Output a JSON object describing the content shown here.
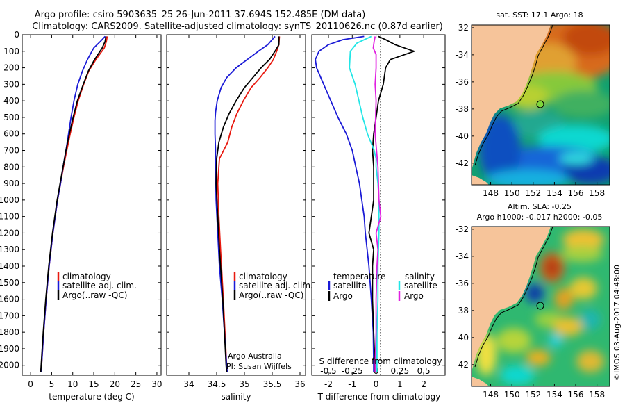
{
  "header": {
    "line1": "Argo profile: csiro 5903635_25 26-Jun-2011 37.694S 152.485E (DM data)",
    "line2": "Climatology: CARS2009. Satellite-adjusted climatology: synTS_20110626.nc (0.87d earlier)"
  },
  "copyright": "©IMOS 03-Aug-2017 04:48:00",
  "colors": {
    "climatology": "#e8190f",
    "satellite": "#1a1ad6",
    "argo": "#000000",
    "sat_salinity": "#22e6e6",
    "argo_salinity": "#e020e0",
    "land": "#f6c49a"
  },
  "depth_ticks": [
    "0",
    "100",
    "200",
    "300",
    "400",
    "500",
    "600",
    "700",
    "800",
    "900",
    "1000",
    "1100",
    "1200",
    "1300",
    "1400",
    "1500",
    "1600",
    "1700",
    "1800",
    "1900",
    "2000"
  ],
  "chart_data": [
    {
      "type": "line",
      "id": "temperature",
      "xlabel": "temperature (deg C)",
      "ylabel": "",
      "xlim": [
        -2,
        31
      ],
      "ylim": [
        2060,
        0
      ],
      "xticks": [
        "0",
        "5",
        "10",
        "15",
        "20",
        "25",
        "30"
      ],
      "legend": [
        "climatology",
        "satellite-adj. clim.",
        "Argo(..raw -QC)"
      ],
      "series": [
        {
          "name": "climatology",
          "color": "red",
          "depth": [
            10,
            40,
            80,
            150,
            220,
            300,
            400,
            500,
            600,
            700,
            800,
            900,
            1000,
            1200,
            1400,
            1600,
            1800,
            2000,
            2040
          ],
          "values": [
            18.2,
            18.0,
            17.5,
            15.5,
            13.8,
            12.6,
            11.3,
            10.3,
            9.4,
            8.6,
            7.8,
            7.1,
            6.4,
            5.3,
            4.4,
            3.7,
            3.1,
            2.6,
            2.5
          ]
        },
        {
          "name": "satellite-adj. clim.",
          "color": "blue",
          "depth": [
            10,
            40,
            80,
            150,
            220,
            300,
            400,
            500,
            600,
            700,
            800,
            900,
            1000,
            1200,
            1400,
            1600,
            1800,
            2000,
            2040
          ],
          "values": [
            17.7,
            16.6,
            15.0,
            13.5,
            12.3,
            11.2,
            10.3,
            9.6,
            9.0,
            8.4,
            7.7,
            7.1,
            6.4,
            5.3,
            4.4,
            3.7,
            3.1,
            2.6,
            2.5
          ]
        },
        {
          "name": "Argo(..raw -QC)",
          "color": "black",
          "depth": [
            10,
            40,
            80,
            150,
            220,
            300,
            400,
            500,
            600,
            700,
            800,
            900,
            1000,
            1200,
            1400,
            1600,
            1800,
            2000,
            2040
          ],
          "values": [
            17.9,
            17.7,
            17.0,
            15.2,
            13.7,
            12.5,
            11.1,
            10.1,
            9.2,
            8.4,
            7.7,
            7.0,
            6.3,
            5.2,
            4.3,
            3.6,
            3.0,
            2.5,
            2.4
          ]
        }
      ]
    },
    {
      "type": "line",
      "id": "salinity",
      "xlabel": "salinity",
      "ylabel": "",
      "xlim": [
        33.6,
        36.1
      ],
      "ylim": [
        2060,
        0
      ],
      "xticks": [
        "34",
        "34.5",
        "35",
        "35.5",
        "36"
      ],
      "legend": [
        "climatology",
        "satellite-adj. clim.",
        "Argo(..raw -QC)"
      ],
      "annotation": [
        "Argo Australia",
        "PI: Susan Wijffels"
      ],
      "series": [
        {
          "name": "climatology",
          "color": "red",
          "depth": [
            10,
            60,
            100,
            150,
            200,
            260,
            320,
            400,
            480,
            560,
            650,
            750,
            900,
            1100,
            1300,
            1600,
            2000,
            2040
          ],
          "values": [
            35.63,
            35.62,
            35.58,
            35.52,
            35.42,
            35.28,
            35.12,
            34.98,
            34.86,
            34.77,
            34.7,
            34.55,
            34.52,
            34.54,
            34.57,
            34.62,
            34.68,
            34.69
          ]
        },
        {
          "name": "satellite-adj. clim.",
          "color": "blue",
          "depth": [
            10,
            60,
            100,
            150,
            200,
            260,
            320,
            400,
            470,
            520,
            600,
            700,
            800,
            1000,
            1200,
            1400,
            1600,
            1800,
            2000,
            2040
          ],
          "values": [
            35.55,
            35.42,
            35.25,
            35.05,
            34.85,
            34.68,
            34.58,
            34.51,
            34.48,
            34.47,
            34.47,
            34.48,
            34.48,
            34.49,
            34.52,
            34.55,
            34.6,
            34.64,
            34.68,
            34.69
          ]
        },
        {
          "name": "Argo(..raw -QC)",
          "color": "black",
          "depth": [
            10,
            60,
            100,
            150,
            200,
            260,
            320,
            400,
            480,
            560,
            650,
            750,
            900,
            1100,
            1300,
            1600,
            2000,
            2040
          ],
          "values": [
            35.62,
            35.62,
            35.55,
            35.45,
            35.3,
            35.15,
            35.0,
            34.85,
            34.72,
            34.62,
            34.54,
            34.5,
            34.49,
            34.52,
            34.55,
            34.61,
            34.67,
            34.68
          ]
        }
      ]
    },
    {
      "type": "line",
      "id": "difference",
      "xlabel": "T difference from climatology",
      "xlabel_top": "S difference from climatology",
      "xlim": [
        -2.7,
        2.9
      ],
      "ylim": [
        2060,
        0
      ],
      "xticks": [
        "-2",
        "-1",
        "0",
        "1",
        "2"
      ],
      "xticks_s": [
        "-0.5",
        "-0.25",
        "0",
        "0.25",
        "0.5"
      ],
      "legend_headers": [
        "temperature",
        "salinity"
      ],
      "legend": [
        "satellite",
        "Argo",
        "satellite",
        "Argo"
      ],
      "series": [
        {
          "name": "T satellite",
          "color": "blue",
          "depth": [
            10,
            30,
            60,
            100,
            150,
            200,
            300,
            400,
            500,
            600,
            700,
            800,
            900,
            1000,
            1100,
            1200,
            1400,
            1600,
            1800,
            2000,
            2040
          ],
          "values": [
            -0.5,
            -1.4,
            -2.0,
            -2.4,
            -2.55,
            -2.5,
            -2.2,
            -1.9,
            -1.6,
            -1.25,
            -1.0,
            -0.85,
            -0.7,
            -0.6,
            -0.5,
            -0.45,
            -0.3,
            -0.2,
            -0.12,
            -0.1,
            -0.1
          ]
        },
        {
          "name": "T Argo",
          "color": "black",
          "depth": [
            10,
            30,
            60,
            100,
            150,
            200,
            300,
            400,
            500,
            600,
            700,
            800,
            900,
            1000,
            1100,
            1200,
            1300,
            1400,
            1600,
            1800,
            2000,
            2040
          ],
          "values": [
            0.1,
            0.4,
            0.8,
            1.6,
            0.6,
            0.4,
            0.3,
            0.1,
            0.0,
            -0.1,
            -0.15,
            -0.1,
            -0.1,
            -0.1,
            -0.2,
            -0.3,
            -0.1,
            -0.15,
            -0.15,
            -0.1,
            -0.05,
            -0.05
          ]
        },
        {
          "name": "S satellite",
          "color": "cyan",
          "depth": [
            10,
            50,
            100,
            200,
            300,
            400,
            500,
            600,
            700,
            750,
            800,
            900,
            1000,
            1200,
            1400,
            1600,
            1800,
            2000,
            2040
          ],
          "values": [
            -0.05,
            -0.2,
            -0.27,
            -0.28,
            -0.22,
            -0.18,
            -0.14,
            -0.09,
            -0.02,
            0.0,
            0.0,
            0.02,
            0.03,
            0.03,
            0.02,
            0.02,
            0.01,
            0.01,
            0.01
          ]
        },
        {
          "name": "S Argo",
          "color": "magenta",
          "depth": [
            10,
            40,
            80,
            120,
            200,
            300,
            400,
            600,
            800,
            1000,
            1100,
            1200,
            1300,
            1400,
            1600,
            1800,
            2000,
            2040
          ],
          "values": [
            -0.01,
            -0.02,
            -0.03,
            0.0,
            0.0,
            -0.01,
            0.0,
            -0.01,
            0.02,
            0.03,
            0.05,
            0.0,
            0.02,
            0.01,
            0.0,
            0.0,
            -0.01,
            -0.01
          ]
        }
      ]
    },
    {
      "type": "heatmap",
      "id": "sst-map",
      "title": "sat. SST: 17.1  Argo: 18",
      "xlim": [
        146.2,
        159.2
      ],
      "ylim": [
        -43.6,
        -31.8
      ],
      "xticks": [
        "148",
        "150",
        "152",
        "154",
        "156",
        "158"
      ],
      "yticks": [
        "-32",
        "-34",
        "-36",
        "-38",
        "-40",
        "-42"
      ],
      "argo_position": {
        "lon": 152.485,
        "lat": -37.694
      }
    },
    {
      "type": "heatmap",
      "id": "sla-map",
      "title": "Altim. SLA: -0.25",
      "subtitle": "Argo h1000: -0.017 h2000: -0.05",
      "xlim": [
        146.2,
        159.2
      ],
      "ylim": [
        -43.6,
        -31.8
      ],
      "xticks": [
        "148",
        "150",
        "152",
        "154",
        "156",
        "158"
      ],
      "yticks": [
        "-32",
        "-34",
        "-36",
        "-38",
        "-40",
        "-42"
      ],
      "argo_position": {
        "lon": 152.485,
        "lat": -37.694
      }
    }
  ]
}
